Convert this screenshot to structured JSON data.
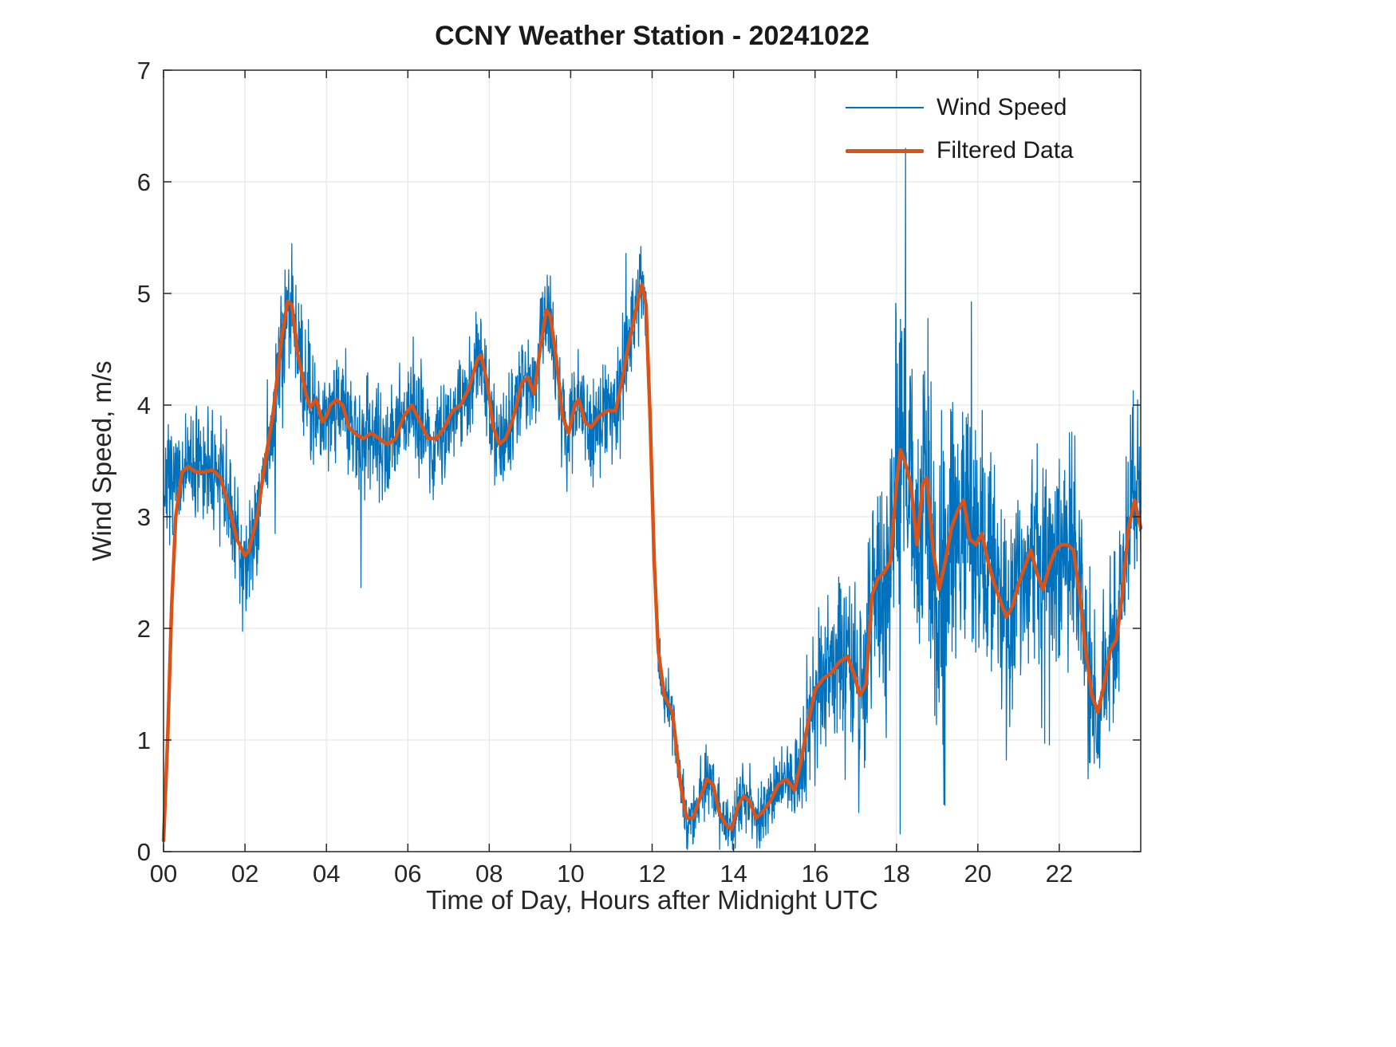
{
  "figure": {
    "background": "#FFFFFF"
  },
  "chart_data": {
    "type": "line",
    "title": "CCNY Weather Station - 20241022",
    "xlabel": "Time of Day, Hours after Midnight UTC",
    "ylabel": "Wind Speed, m/s",
    "xlim": [
      0,
      24
    ],
    "ylim": [
      0,
      7
    ],
    "grid": true,
    "legend_position": "top-right",
    "xticks": {
      "values": [
        0,
        2,
        4,
        6,
        8,
        10,
        12,
        14,
        16,
        18,
        20,
        22
      ],
      "labels": [
        "00",
        "02",
        "04",
        "06",
        "08",
        "10",
        "12",
        "14",
        "16",
        "18",
        "20",
        "22"
      ]
    },
    "yticks": {
      "values": [
        0,
        1,
        2,
        3,
        4,
        5,
        6,
        7
      ],
      "labels": [
        "0",
        "1",
        "2",
        "3",
        "4",
        "5",
        "6",
        "7"
      ]
    },
    "colors": {
      "wind_speed": "#0072BD",
      "filtered": "#D95319",
      "grid": "#E2E2E2",
      "axis": "#262626",
      "tick_label": "#262626"
    },
    "series": [
      {
        "name": "Wind Speed",
        "color_key": "wind_speed",
        "line_width": 1.3,
        "kind": "noisy-derived",
        "seed": 7,
        "sample_step_hours": 0.008333,
        "start_level": 3.3,
        "start_hold_hours": 0.45,
        "spike_probability": 0.02,
        "spike_factor": 2.2,
        "clamp": [
          0.02,
          6.3
        ],
        "noise_envelope": [
          [
            0,
            0.45
          ],
          [
            2,
            0.55
          ],
          [
            3,
            0.6
          ],
          [
            4,
            0.5
          ],
          [
            11.5,
            0.45
          ],
          [
            11.9,
            0.35
          ],
          [
            12.1,
            0.3
          ],
          [
            15.3,
            0.3
          ],
          [
            15.8,
            0.6
          ],
          [
            16.5,
            0.7
          ],
          [
            17.2,
            0.9
          ],
          [
            17.8,
            1.4
          ],
          [
            19.0,
            1.5
          ],
          [
            19.5,
            1.2
          ],
          [
            20.0,
            1.15
          ],
          [
            21.0,
            1.0
          ],
          [
            22.0,
            0.95
          ],
          [
            23.0,
            0.8
          ],
          [
            24.0,
            0.85
          ]
        ]
      },
      {
        "name": "Filtered Data",
        "color_key": "filtered",
        "line_width": 4.5,
        "kind": "line",
        "points": [
          [
            0,
            0.1
          ],
          [
            0.1,
            1.0
          ],
          [
            0.2,
            2.2
          ],
          [
            0.3,
            3.0
          ],
          [
            0.45,
            3.4
          ],
          [
            0.6,
            3.45
          ],
          [
            0.8,
            3.4
          ],
          [
            1.0,
            3.4
          ],
          [
            1.2,
            3.42
          ],
          [
            1.4,
            3.35
          ],
          [
            1.6,
            3.1
          ],
          [
            1.8,
            2.8
          ],
          [
            2.0,
            2.65
          ],
          [
            2.1,
            2.7
          ],
          [
            2.3,
            3.0
          ],
          [
            2.5,
            3.5
          ],
          [
            2.7,
            3.95
          ],
          [
            2.9,
            4.6
          ],
          [
            3.05,
            4.93
          ],
          [
            3.15,
            4.9
          ],
          [
            3.3,
            4.45
          ],
          [
            3.5,
            4.1
          ],
          [
            3.6,
            3.98
          ],
          [
            3.75,
            4.05
          ],
          [
            3.9,
            3.85
          ],
          [
            4.0,
            3.9
          ],
          [
            4.1,
            4.0
          ],
          [
            4.25,
            4.05
          ],
          [
            4.4,
            4.0
          ],
          [
            4.55,
            3.8
          ],
          [
            4.7,
            3.75
          ],
          [
            4.9,
            3.7
          ],
          [
            5.1,
            3.75
          ],
          [
            5.3,
            3.7
          ],
          [
            5.5,
            3.65
          ],
          [
            5.7,
            3.7
          ],
          [
            5.9,
            3.9
          ],
          [
            6.1,
            4.0
          ],
          [
            6.3,
            3.85
          ],
          [
            6.5,
            3.7
          ],
          [
            6.7,
            3.7
          ],
          [
            6.9,
            3.8
          ],
          [
            7.1,
            3.95
          ],
          [
            7.3,
            4.0
          ],
          [
            7.5,
            4.15
          ],
          [
            7.7,
            4.4
          ],
          [
            7.8,
            4.45
          ],
          [
            7.95,
            4.2
          ],
          [
            8.1,
            3.8
          ],
          [
            8.25,
            3.65
          ],
          [
            8.4,
            3.7
          ],
          [
            8.6,
            3.9
          ],
          [
            8.8,
            4.2
          ],
          [
            8.95,
            4.25
          ],
          [
            9.1,
            4.1
          ],
          [
            9.25,
            4.5
          ],
          [
            9.4,
            4.85
          ],
          [
            9.5,
            4.8
          ],
          [
            9.65,
            4.4
          ],
          [
            9.8,
            3.9
          ],
          [
            9.95,
            3.75
          ],
          [
            10.1,
            4.0
          ],
          [
            10.2,
            4.05
          ],
          [
            10.35,
            3.85
          ],
          [
            10.5,
            3.8
          ],
          [
            10.7,
            3.9
          ],
          [
            10.9,
            3.95
          ],
          [
            11.1,
            3.95
          ],
          [
            11.25,
            4.2
          ],
          [
            11.4,
            4.5
          ],
          [
            11.6,
            4.85
          ],
          [
            11.75,
            5.08
          ],
          [
            11.85,
            4.9
          ],
          [
            11.95,
            3.9
          ],
          [
            12.05,
            2.6
          ],
          [
            12.15,
            1.8
          ],
          [
            12.3,
            1.4
          ],
          [
            12.5,
            1.25
          ],
          [
            12.7,
            0.6
          ],
          [
            12.85,
            0.3
          ],
          [
            13.0,
            0.3
          ],
          [
            13.2,
            0.5
          ],
          [
            13.35,
            0.65
          ],
          [
            13.5,
            0.6
          ],
          [
            13.65,
            0.35
          ],
          [
            13.8,
            0.25
          ],
          [
            13.95,
            0.2
          ],
          [
            14.1,
            0.4
          ],
          [
            14.25,
            0.5
          ],
          [
            14.4,
            0.45
          ],
          [
            14.55,
            0.3
          ],
          [
            14.7,
            0.35
          ],
          [
            14.9,
            0.45
          ],
          [
            15.1,
            0.6
          ],
          [
            15.3,
            0.65
          ],
          [
            15.5,
            0.55
          ],
          [
            15.65,
            0.8
          ],
          [
            15.8,
            1.1
          ],
          [
            16.0,
            1.45
          ],
          [
            16.2,
            1.55
          ],
          [
            16.4,
            1.6
          ],
          [
            16.6,
            1.7
          ],
          [
            16.8,
            1.75
          ],
          [
            16.95,
            1.6
          ],
          [
            17.1,
            1.4
          ],
          [
            17.25,
            1.5
          ],
          [
            17.4,
            2.3
          ],
          [
            17.55,
            2.45
          ],
          [
            17.7,
            2.5
          ],
          [
            17.85,
            2.6
          ],
          [
            18.0,
            3.3
          ],
          [
            18.1,
            3.6
          ],
          [
            18.2,
            3.5
          ],
          [
            18.35,
            3.3
          ],
          [
            18.5,
            2.75
          ],
          [
            18.65,
            3.3
          ],
          [
            18.75,
            3.35
          ],
          [
            18.9,
            2.7
          ],
          [
            19.05,
            2.35
          ],
          [
            19.2,
            2.6
          ],
          [
            19.35,
            2.9
          ],
          [
            19.5,
            3.05
          ],
          [
            19.65,
            3.15
          ],
          [
            19.8,
            2.8
          ],
          [
            19.95,
            2.75
          ],
          [
            20.1,
            2.85
          ],
          [
            20.25,
            2.6
          ],
          [
            20.4,
            2.4
          ],
          [
            20.55,
            2.25
          ],
          [
            20.7,
            2.1
          ],
          [
            20.85,
            2.2
          ],
          [
            21.0,
            2.4
          ],
          [
            21.15,
            2.55
          ],
          [
            21.3,
            2.7
          ],
          [
            21.45,
            2.5
          ],
          [
            21.6,
            2.35
          ],
          [
            21.75,
            2.55
          ],
          [
            21.9,
            2.7
          ],
          [
            22.05,
            2.75
          ],
          [
            22.2,
            2.75
          ],
          [
            22.35,
            2.7
          ],
          [
            22.5,
            2.3
          ],
          [
            22.65,
            1.8
          ],
          [
            22.8,
            1.4
          ],
          [
            22.95,
            1.25
          ],
          [
            23.1,
            1.5
          ],
          [
            23.25,
            1.8
          ],
          [
            23.4,
            1.9
          ],
          [
            23.55,
            2.3
          ],
          [
            23.7,
            2.9
          ],
          [
            23.85,
            3.15
          ],
          [
            24.0,
            2.9
          ]
        ]
      }
    ]
  }
}
